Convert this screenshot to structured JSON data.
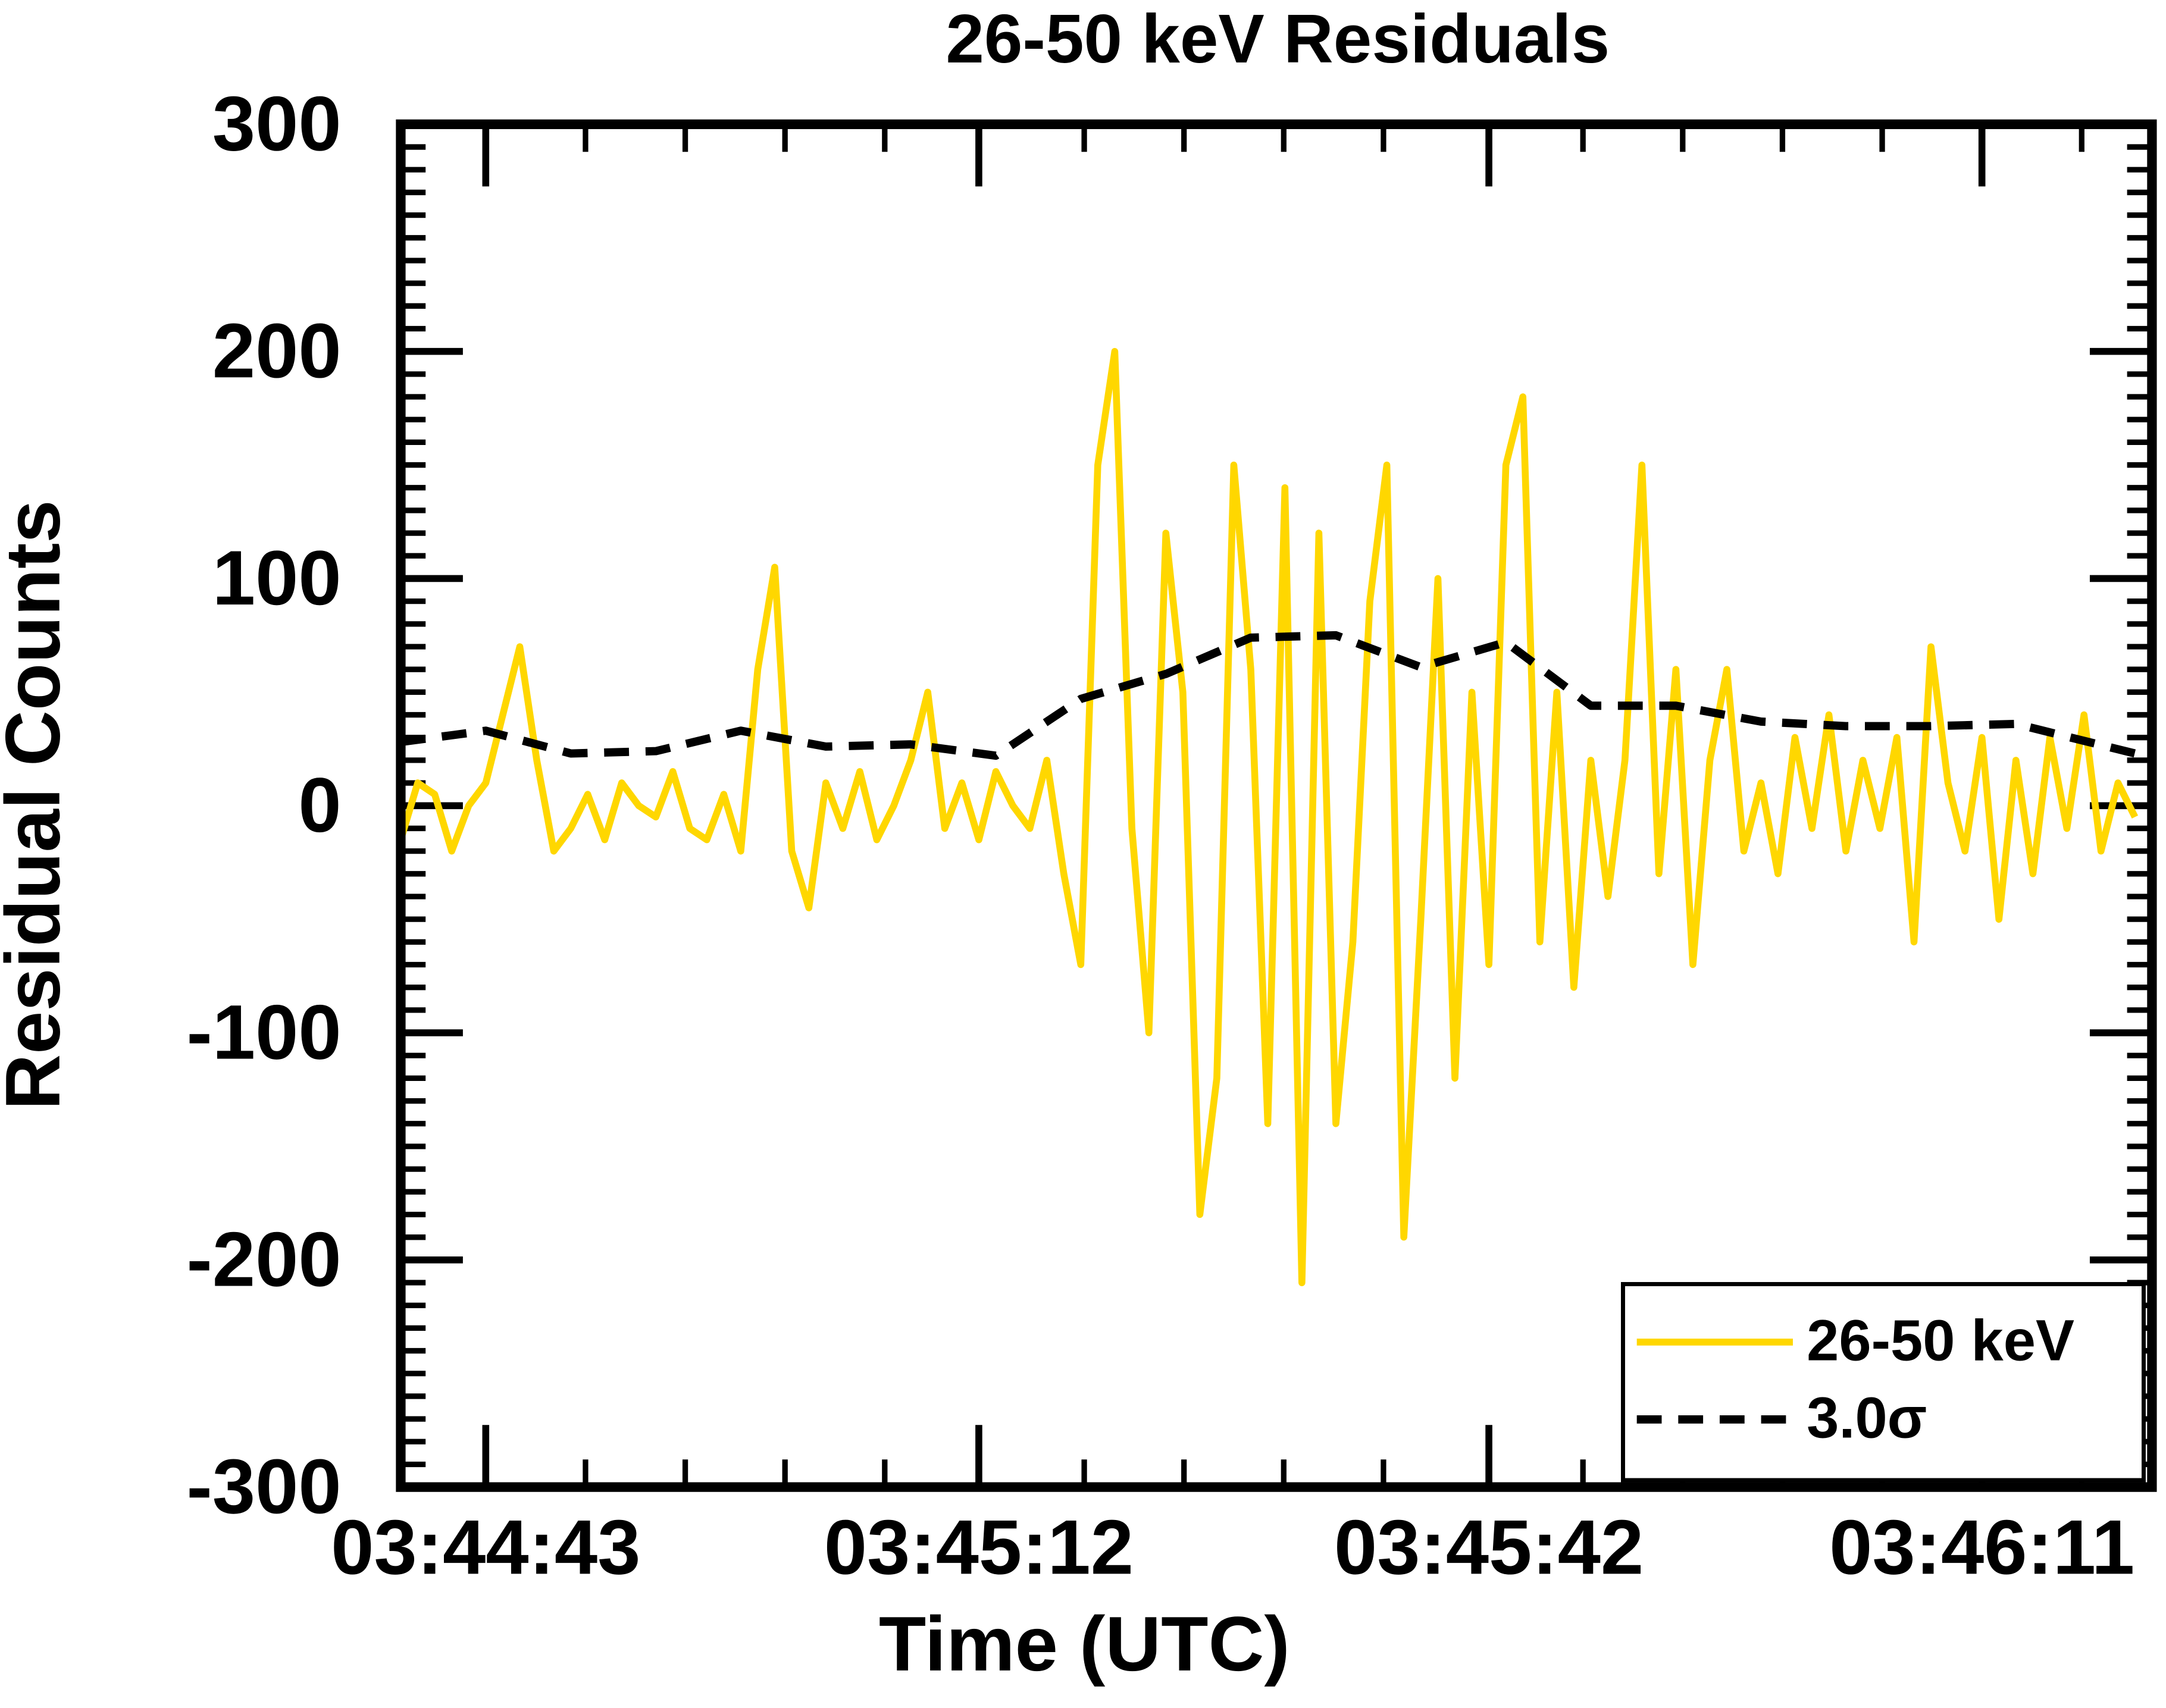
{
  "chart_data": {
    "type": "line",
    "title": "26-50 keV Residuals",
    "x_label": "Time (UTC)",
    "y_label": "Residual Counts",
    "xlim": [
      "03:44:38",
      "03:46:21"
    ],
    "xticks": [
      "03:44:43",
      "03:45:12",
      "03:45:42",
      "03:46:11"
    ],
    "ylim": [
      -300,
      300
    ],
    "yticks": [
      -300,
      -200,
      -100,
      0,
      100,
      200,
      300
    ],
    "legend": "lower right",
    "series": [
      {
        "name": "26-50 keV",
        "color": "#ffd700",
        "dash": false,
        "x": [
          "03:44:38",
          "03:44:39",
          "03:44:40",
          "03:44:41",
          "03:44:42",
          "03:44:43",
          "03:44:44",
          "03:44:45",
          "03:44:46",
          "03:44:47",
          "03:44:48",
          "03:44:49",
          "03:44:50",
          "03:44:51",
          "03:44:52",
          "03:44:53",
          "03:44:54",
          "03:44:55",
          "03:44:56",
          "03:44:57",
          "03:44:58",
          "03:44:59",
          "03:45:00",
          "03:45:01",
          "03:45:02",
          "03:45:03",
          "03:45:04",
          "03:45:05",
          "03:45:06",
          "03:45:07",
          "03:45:08",
          "03:45:09",
          "03:45:10",
          "03:45:11",
          "03:45:12",
          "03:45:13",
          "03:45:14",
          "03:45:15",
          "03:45:16",
          "03:45:17",
          "03:45:18",
          "03:45:19",
          "03:45:20",
          "03:45:21",
          "03:45:22",
          "03:45:23",
          "03:45:24",
          "03:45:25",
          "03:45:26",
          "03:45:27",
          "03:45:28",
          "03:45:29",
          "03:45:30",
          "03:45:31",
          "03:45:32",
          "03:45:33",
          "03:45:34",
          "03:45:35",
          "03:45:36",
          "03:45:37",
          "03:45:38",
          "03:45:39",
          "03:45:40",
          "03:45:41",
          "03:45:42",
          "03:45:43",
          "03:45:44",
          "03:45:45",
          "03:45:46",
          "03:45:47",
          "03:45:48",
          "03:45:49",
          "03:45:50",
          "03:45:51",
          "03:45:52",
          "03:45:53",
          "03:45:54",
          "03:45:55",
          "03:45:56",
          "03:45:57",
          "03:45:58",
          "03:45:59",
          "03:46:00",
          "03:46:01",
          "03:46:02",
          "03:46:03",
          "03:46:04",
          "03:46:05",
          "03:46:06",
          "03:46:07",
          "03:46:08",
          "03:46:09",
          "03:46:10",
          "03:46:11",
          "03:46:12",
          "03:46:13",
          "03:46:14",
          "03:46:15",
          "03:46:16",
          "03:46:17",
          "03:46:18",
          "03:46:19",
          "03:46:20"
        ],
        "values": [
          -15,
          10,
          5,
          -20,
          0,
          10,
          40,
          70,
          20,
          -20,
          -10,
          5,
          -15,
          10,
          0,
          -5,
          15,
          -10,
          -15,
          5,
          -20,
          60,
          105,
          -20,
          -45,
          10,
          -10,
          15,
          -15,
          0,
          20,
          50,
          -10,
          10,
          -15,
          15,
          0,
          -10,
          20,
          -30,
          -70,
          150,
          200,
          -10,
          -100,
          120,
          50,
          -180,
          -120,
          150,
          60,
          -140,
          140,
          -210,
          120,
          -140,
          -60,
          90,
          150,
          -190,
          -50,
          100,
          -120,
          50,
          -70,
          150,
          180,
          -60,
          50,
          -80,
          20,
          -40,
          20,
          150,
          -30,
          60,
          -70,
          20,
          60,
          -20,
          10,
          -30,
          30,
          -10,
          40,
          -20,
          20,
          -10,
          30,
          -60,
          70,
          10,
          -20,
          30,
          -50,
          20,
          -30,
          30,
          -10,
          40,
          -20,
          10,
          -5
        ]
      },
      {
        "name": "3.0σ",
        "color": "#000000",
        "dash": true,
        "x": [
          "03:44:38",
          "03:44:43",
          "03:44:48",
          "03:44:53",
          "03:44:58",
          "03:45:03",
          "03:45:08",
          "03:45:13",
          "03:45:18",
          "03:45:23",
          "03:45:28",
          "03:45:33",
          "03:45:38",
          "03:45:43",
          "03:45:48",
          "03:45:53",
          "03:45:58",
          "03:46:03",
          "03:46:08",
          "03:46:13",
          "03:46:20"
        ],
        "values": [
          28,
          33,
          23,
          24,
          33,
          26,
          27,
          22,
          47,
          58,
          74,
          75,
          61,
          72,
          44,
          44,
          37,
          35,
          35,
          36,
          23
        ]
      }
    ]
  }
}
